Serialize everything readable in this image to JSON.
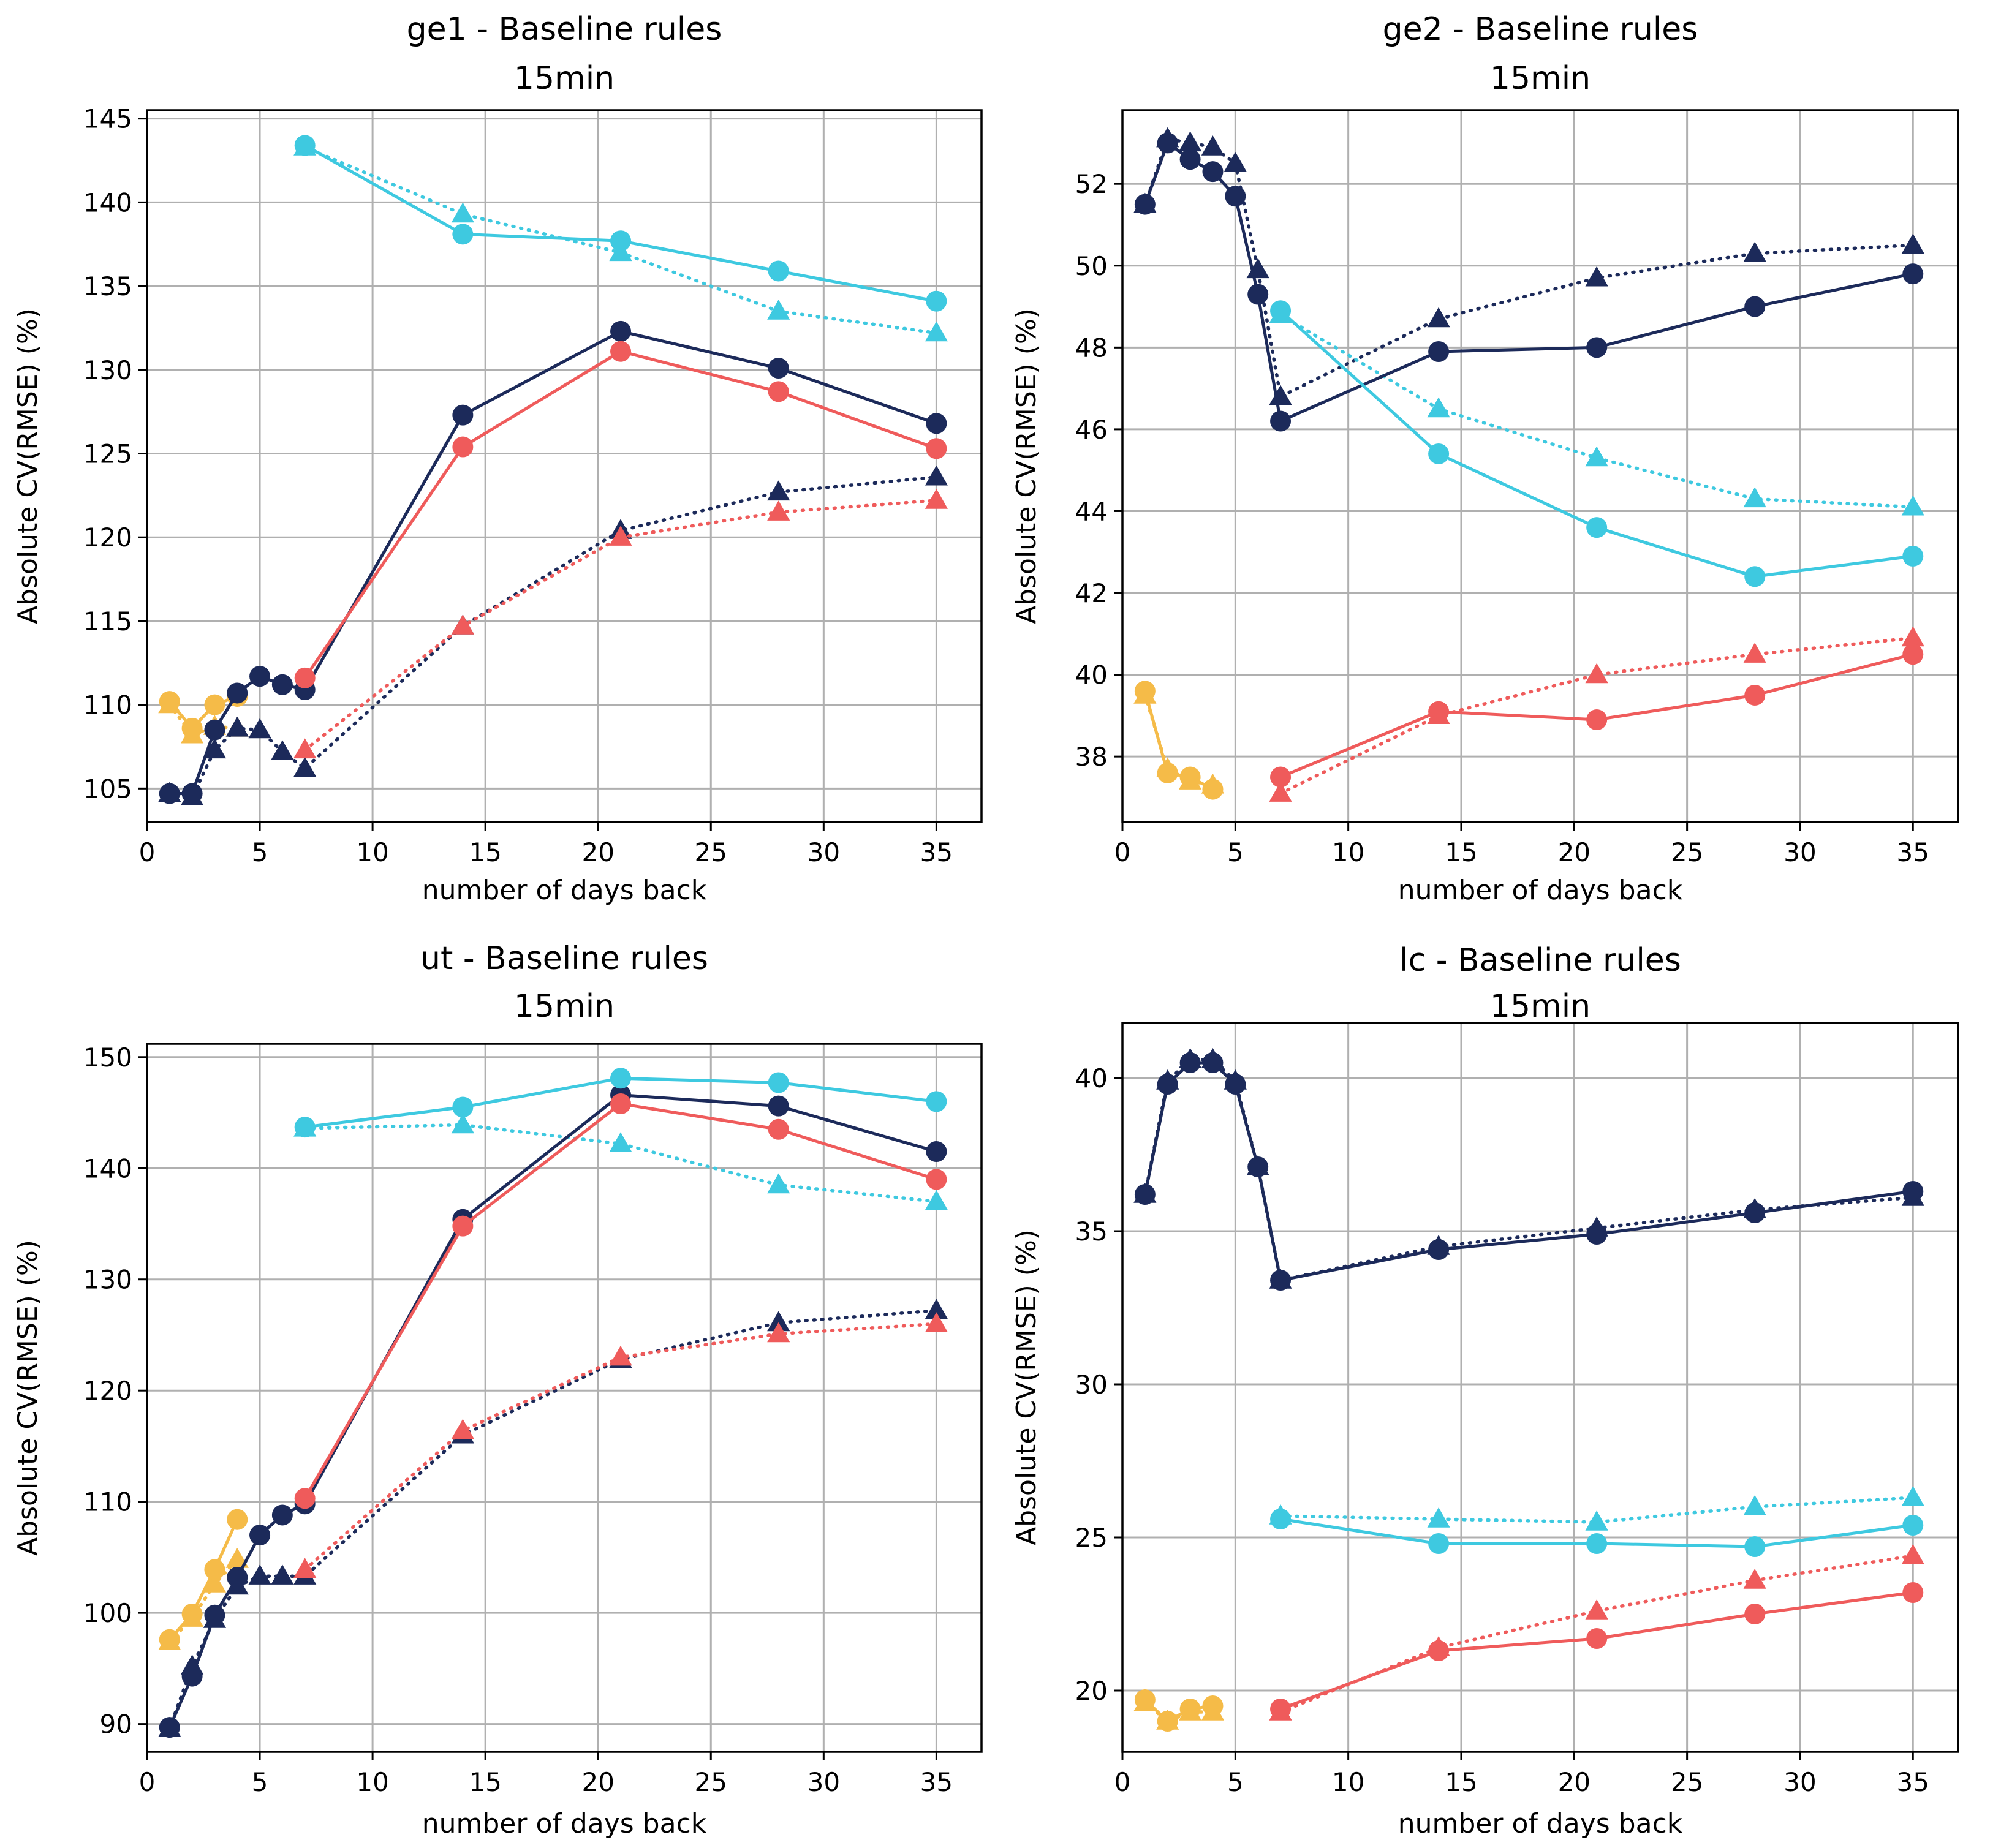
{
  "figure": {
    "type": "chart-grid",
    "rows": 2,
    "cols": 2
  },
  "colors": {
    "navy": "#1c2a5a",
    "coral": "#ef5b5b",
    "cyan": "#3ec9e0",
    "yellow": "#f5bb48",
    "grid": "#b0b0b0",
    "axis": "#000000"
  },
  "chart_data": [
    {
      "type": "line",
      "id": "ge1",
      "title": "ge1 - Baseline rules",
      "subtitle": "15min",
      "xlabel": "number of days back",
      "ylabel": "Absolute CV(RMSE) (%)",
      "xlim": [
        0,
        37
      ],
      "ylim": [
        103,
        145.5
      ],
      "xticks": [
        0,
        5,
        10,
        15,
        20,
        25,
        30,
        35
      ],
      "yticks": [
        105,
        110,
        115,
        120,
        125,
        130,
        135,
        140,
        145
      ],
      "grid": true,
      "series": [
        {
          "name": "yellow-circle",
          "color": "yellow",
          "marker": "circle",
          "dash": "solid",
          "x": [
            1,
            2,
            3,
            4
          ],
          "y": [
            110.2,
            108.6,
            110.0,
            110.5
          ]
        },
        {
          "name": "yellow-triangle",
          "color": "yellow",
          "marker": "triangle",
          "dash": "dotted",
          "x": [
            1,
            2,
            3,
            4
          ],
          "y": [
            110.0,
            108.2,
            108.7,
            108.6
          ]
        },
        {
          "name": "navy-circle",
          "color": "navy",
          "marker": "circle",
          "dash": "solid",
          "x": [
            1,
            2,
            3,
            4,
            5,
            6,
            7,
            14,
            21,
            28,
            35
          ],
          "y": [
            104.7,
            104.7,
            108.5,
            110.7,
            111.7,
            111.2,
            110.9,
            127.3,
            132.3,
            130.1,
            126.8
          ]
        },
        {
          "name": "navy-triangle",
          "color": "navy",
          "marker": "triangle",
          "dash": "dotted",
          "x": [
            1,
            2,
            3,
            4,
            5,
            6,
            7,
            14,
            21,
            28,
            35
          ],
          "y": [
            104.7,
            104.5,
            107.3,
            108.6,
            108.5,
            107.2,
            106.2,
            114.7,
            120.4,
            122.7,
            123.6
          ]
        },
        {
          "name": "coral-circle",
          "color": "coral",
          "marker": "circle",
          "dash": "solid",
          "x": [
            7,
            14,
            21,
            28,
            35
          ],
          "y": [
            111.6,
            125.4,
            131.1,
            128.7,
            125.3
          ]
        },
        {
          "name": "coral-triangle",
          "color": "coral",
          "marker": "triangle",
          "dash": "dotted",
          "x": [
            7,
            14,
            21,
            28,
            35
          ],
          "y": [
            107.3,
            114.7,
            120.0,
            121.5,
            122.2
          ]
        },
        {
          "name": "cyan-circle",
          "color": "cyan",
          "marker": "circle",
          "dash": "solid",
          "x": [
            7,
            14,
            21,
            28,
            35
          ],
          "y": [
            143.4,
            138.1,
            137.7,
            135.9,
            134.1
          ]
        },
        {
          "name": "cyan-triangle",
          "color": "cyan",
          "marker": "triangle",
          "dash": "dotted",
          "x": [
            7,
            14,
            21,
            28,
            35
          ],
          "y": [
            143.3,
            139.3,
            137.0,
            133.5,
            132.2
          ]
        }
      ]
    },
    {
      "type": "line",
      "id": "ge2",
      "title": "ge2 - Baseline rules",
      "subtitle": "15min",
      "xlabel": "number of days back",
      "ylabel": "Absolute CV(RMSE) (%)",
      "xlim": [
        0,
        37
      ],
      "ylim": [
        36.4,
        53.8
      ],
      "xticks": [
        0,
        5,
        10,
        15,
        20,
        25,
        30,
        35
      ],
      "yticks": [
        38,
        40,
        42,
        44,
        46,
        48,
        50,
        52
      ],
      "grid": true,
      "series": [
        {
          "name": "yellow-circle",
          "color": "yellow",
          "marker": "circle",
          "dash": "solid",
          "x": [
            1,
            2,
            3,
            4
          ],
          "y": [
            39.6,
            37.6,
            37.5,
            37.2
          ]
        },
        {
          "name": "yellow-triangle",
          "color": "yellow",
          "marker": "triangle",
          "dash": "dotted",
          "x": [
            1,
            2,
            3,
            4
          ],
          "y": [
            39.5,
            37.7,
            37.4,
            37.3
          ]
        },
        {
          "name": "navy-circle",
          "color": "navy",
          "marker": "circle",
          "dash": "solid",
          "x": [
            1,
            2,
            3,
            4,
            5,
            6,
            7,
            14,
            21,
            28,
            35
          ],
          "y": [
            51.5,
            53.0,
            52.6,
            52.3,
            51.7,
            49.3,
            46.2,
            47.9,
            48.0,
            49.0,
            49.8
          ]
        },
        {
          "name": "navy-triangle",
          "color": "navy",
          "marker": "triangle",
          "dash": "dotted",
          "x": [
            1,
            2,
            3,
            4,
            5,
            6,
            7,
            14,
            21,
            28,
            35
          ],
          "y": [
            51.5,
            53.1,
            53.0,
            52.9,
            52.5,
            49.9,
            46.8,
            48.7,
            49.7,
            50.3,
            50.5
          ]
        },
        {
          "name": "coral-circle",
          "color": "coral",
          "marker": "circle",
          "dash": "solid",
          "x": [
            7,
            14,
            21,
            28,
            35
          ],
          "y": [
            37.5,
            39.1,
            38.9,
            39.5,
            40.5
          ]
        },
        {
          "name": "coral-triangle",
          "color": "coral",
          "marker": "triangle",
          "dash": "dotted",
          "x": [
            7,
            14,
            21,
            28,
            35
          ],
          "y": [
            37.1,
            39.0,
            40.0,
            40.5,
            40.9
          ]
        },
        {
          "name": "cyan-circle",
          "color": "cyan",
          "marker": "circle",
          "dash": "solid",
          "x": [
            7,
            14,
            21,
            28,
            35
          ],
          "y": [
            48.9,
            45.4,
            43.6,
            42.4,
            42.9
          ]
        },
        {
          "name": "cyan-triangle",
          "color": "cyan",
          "marker": "triangle",
          "dash": "dotted",
          "x": [
            7,
            14,
            21,
            28,
            35
          ],
          "y": [
            48.8,
            46.5,
            45.3,
            44.3,
            44.1
          ]
        }
      ]
    },
    {
      "type": "line",
      "id": "ut",
      "title": "ut - Baseline rules",
      "subtitle": "15min",
      "xlabel": "number of days back",
      "ylabel": "Absolute CV(RMSE) (%)",
      "xlim": [
        0,
        37
      ],
      "ylim": [
        87.5,
        151.2
      ],
      "xticks": [
        0,
        5,
        10,
        15,
        20,
        25,
        30,
        35
      ],
      "yticks": [
        90,
        100,
        110,
        120,
        130,
        140,
        150
      ],
      "grid": true,
      "series": [
        {
          "name": "yellow-circle",
          "color": "yellow",
          "marker": "circle",
          "dash": "solid",
          "x": [
            1,
            2,
            3,
            4
          ],
          "y": [
            97.6,
            99.9,
            103.9,
            108.4
          ]
        },
        {
          "name": "yellow-triangle",
          "color": "yellow",
          "marker": "triangle",
          "dash": "dotted",
          "x": [
            1,
            2,
            3,
            4
          ],
          "y": [
            97.4,
            99.5,
            102.6,
            104.8
          ]
        },
        {
          "name": "navy-circle",
          "color": "navy",
          "marker": "circle",
          "dash": "solid",
          "x": [
            1,
            2,
            3,
            4,
            5,
            6,
            7,
            14,
            21,
            28,
            35
          ],
          "y": [
            89.7,
            94.3,
            99.8,
            103.2,
            107.0,
            108.8,
            109.8,
            135.4,
            146.6,
            145.6,
            141.5
          ]
        },
        {
          "name": "navy-triangle",
          "color": "navy",
          "marker": "triangle",
          "dash": "dotted",
          "x": [
            1,
            2,
            3,
            4,
            5,
            6,
            7,
            14,
            21,
            28,
            35
          ],
          "y": [
            89.6,
            95.2,
            99.4,
            102.4,
            103.3,
            103.3,
            103.3,
            116.0,
            122.8,
            126.1,
            127.2
          ]
        },
        {
          "name": "coral-circle",
          "color": "coral",
          "marker": "circle",
          "dash": "solid",
          "x": [
            7,
            14,
            21,
            28,
            35
          ],
          "y": [
            110.3,
            134.8,
            145.8,
            143.5,
            139.0
          ]
        },
        {
          "name": "coral-triangle",
          "color": "coral",
          "marker": "triangle",
          "dash": "dotted",
          "x": [
            7,
            14,
            21,
            28,
            35
          ],
          "y": [
            103.9,
            116.4,
            123.0,
            125.1,
            126.0
          ]
        },
        {
          "name": "cyan-circle",
          "color": "cyan",
          "marker": "circle",
          "dash": "solid",
          "x": [
            7,
            14,
            21,
            28,
            35
          ],
          "y": [
            143.7,
            145.5,
            148.1,
            147.7,
            146.0
          ]
        },
        {
          "name": "cyan-triangle",
          "color": "cyan",
          "marker": "triangle",
          "dash": "dotted",
          "x": [
            7,
            14,
            21,
            28,
            35
          ],
          "y": [
            143.6,
            143.9,
            142.2,
            138.5,
            137.0
          ]
        }
      ]
    },
    {
      "type": "line",
      "id": "lc",
      "title": "lc - Baseline rules",
      "subtitle": "15min",
      "xlabel": "number of days back",
      "ylabel": "Absolute CV(RMSE) (%)",
      "xlim": [
        0,
        37
      ],
      "ylim": [
        18.0,
        41.8
      ],
      "xticks": [
        0,
        5,
        10,
        15,
        20,
        25,
        30,
        35
      ],
      "yticks": [
        20,
        25,
        30,
        35,
        40
      ],
      "grid": true,
      "series": [
        {
          "name": "yellow-circle",
          "color": "yellow",
          "marker": "circle",
          "dash": "solid",
          "x": [
            1,
            2,
            3,
            4
          ],
          "y": [
            19.7,
            19.0,
            19.4,
            19.5
          ]
        },
        {
          "name": "yellow-triangle",
          "color": "yellow",
          "marker": "triangle",
          "dash": "dotted",
          "x": [
            1,
            2,
            3,
            4
          ],
          "y": [
            19.6,
            19.0,
            19.3,
            19.3
          ]
        },
        {
          "name": "navy-circle",
          "color": "navy",
          "marker": "circle",
          "dash": "solid",
          "x": [
            1,
            2,
            3,
            4,
            5,
            6,
            7,
            14,
            21,
            28,
            35
          ],
          "y": [
            36.2,
            39.8,
            40.5,
            40.5,
            39.8,
            37.1,
            33.4,
            34.4,
            34.9,
            35.6,
            36.3
          ]
        },
        {
          "name": "navy-triangle",
          "color": "navy",
          "marker": "triangle",
          "dash": "dotted",
          "x": [
            1,
            2,
            3,
            4,
            5,
            6,
            7,
            14,
            21,
            28,
            35
          ],
          "y": [
            36.2,
            39.9,
            40.6,
            40.6,
            39.9,
            37.1,
            33.4,
            34.5,
            35.1,
            35.7,
            36.1
          ]
        },
        {
          "name": "coral-circle",
          "color": "coral",
          "marker": "circle",
          "dash": "solid",
          "x": [
            7,
            14,
            21,
            28,
            35
          ],
          "y": [
            19.4,
            21.3,
            21.7,
            22.5,
            23.2
          ]
        },
        {
          "name": "coral-triangle",
          "color": "coral",
          "marker": "triangle",
          "dash": "dotted",
          "x": [
            7,
            14,
            21,
            28,
            35
          ],
          "y": [
            19.3,
            21.4,
            22.6,
            23.6,
            24.4
          ]
        },
        {
          "name": "cyan-circle",
          "color": "cyan",
          "marker": "circle",
          "dash": "solid",
          "x": [
            7,
            14,
            21,
            28,
            35
          ],
          "y": [
            25.6,
            24.8,
            24.8,
            24.7,
            25.4
          ]
        },
        {
          "name": "cyan-triangle",
          "color": "cyan",
          "marker": "triangle",
          "dash": "dotted",
          "x": [
            7,
            14,
            21,
            28,
            35
          ],
          "y": [
            25.7,
            25.6,
            25.5,
            26.0,
            26.3
          ]
        }
      ]
    }
  ]
}
